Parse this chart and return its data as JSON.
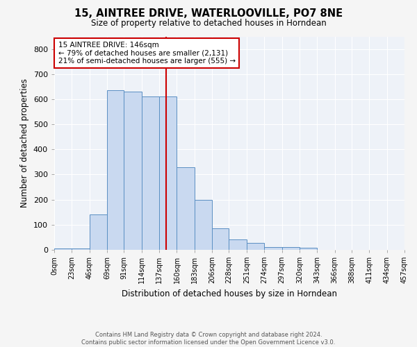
{
  "title": "15, AINTREE DRIVE, WATERLOOVILLE, PO7 8NE",
  "subtitle": "Size of property relative to detached houses in Horndean",
  "xlabel": "Distribution of detached houses by size in Horndean",
  "ylabel": "Number of detached properties",
  "bin_edges": [
    0,
    23,
    46,
    69,
    91,
    114,
    137,
    160,
    183,
    206,
    228,
    251,
    274,
    297,
    320,
    343,
    366,
    388,
    411,
    434,
    457
  ],
  "bar_heights": [
    5,
    5,
    140,
    635,
    630,
    610,
    610,
    330,
    200,
    85,
    42,
    27,
    10,
    12,
    7,
    0,
    0,
    0,
    0,
    0
  ],
  "bar_color": "#c9d9f0",
  "bar_edge_color": "#5a8fc3",
  "vline_x": 146,
  "vline_color": "#cc0000",
  "annotation_line1": "15 AINTREE DRIVE: 146sqm",
  "annotation_line2": "← 79% of detached houses are smaller (2,131)",
  "annotation_line3": "21% of semi-detached houses are larger (555) →",
  "annotation_box_color": "#ffffff",
  "annotation_box_edge": "#cc0000",
  "tick_labels": [
    "0sqm",
    "23sqm",
    "46sqm",
    "69sqm",
    "91sqm",
    "114sqm",
    "137sqm",
    "160sqm",
    "183sqm",
    "206sqm",
    "228sqm",
    "251sqm",
    "274sqm",
    "297sqm",
    "320sqm",
    "343sqm",
    "366sqm",
    "388sqm",
    "411sqm",
    "434sqm",
    "457sqm"
  ],
  "ylim": [
    0,
    850
  ],
  "yticks": [
    0,
    100,
    200,
    300,
    400,
    500,
    600,
    700,
    800
  ],
  "bg_color": "#eef2f8",
  "grid_color": "#ffffff",
  "fig_bg_color": "#f5f5f5",
  "footer_line1": "Contains HM Land Registry data © Crown copyright and database right 2024.",
  "footer_line2": "Contains public sector information licensed under the Open Government Licence v3.0."
}
